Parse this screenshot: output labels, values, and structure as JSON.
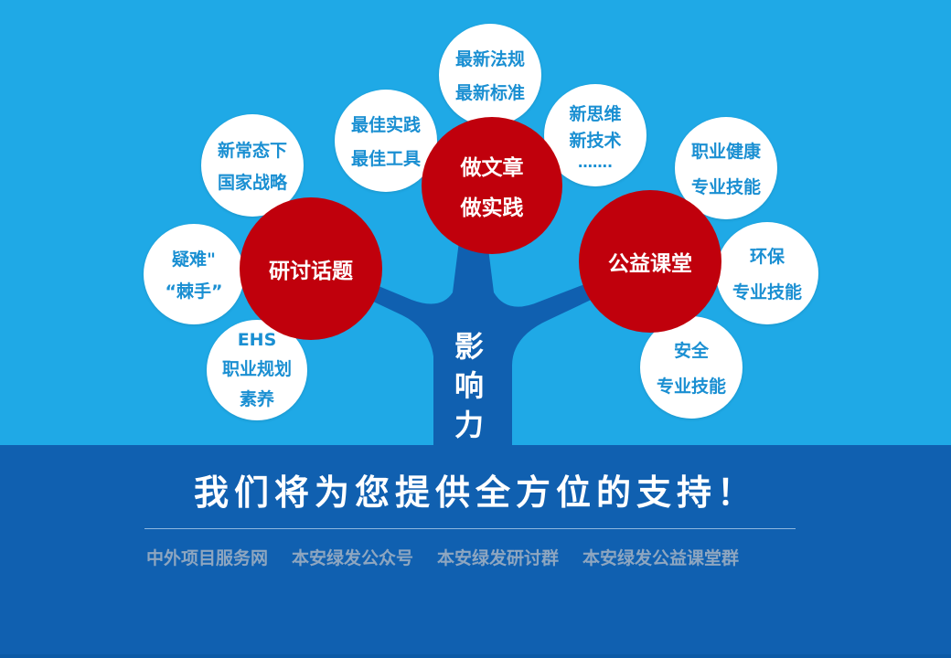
{
  "trunk": {
    "chars": [
      "影",
      "响",
      "力"
    ]
  },
  "hubs": {
    "left": [
      "研讨话题"
    ],
    "top": [
      "做文章",
      "做实践"
    ],
    "right": [
      "公益课堂"
    ]
  },
  "bubbles": {
    "new_normal": [
      "新常态下",
      "国家战略"
    ],
    "difficult": [
      "疑难\"",
      "“棘手”"
    ],
    "ehs": [
      "EHS",
      "职业规划",
      "素养"
    ],
    "best": [
      "最佳实践",
      "最佳工具"
    ],
    "laws": [
      "最新法规",
      "最新标准"
    ],
    "thinking": [
      "新思维",
      "新技术",
      "……."
    ],
    "health": [
      "职业健康",
      "专业技能"
    ],
    "env": [
      "环保",
      "专业技能"
    ],
    "safety": [
      "安全",
      "专业技能"
    ]
  },
  "headline": "我们将为您提供全方位的支持！",
  "footer_links": [
    "中外项目服务网",
    "本安绿发公众号",
    "本安绿发研讨群",
    "本安绿发公益课堂群"
  ],
  "colors": {
    "sky": "#1fa9e6",
    "ground": "#1060b0",
    "hub_red": "#c0000c",
    "bubble_text": "#1a8fd2",
    "trunk": "#1060b0"
  }
}
